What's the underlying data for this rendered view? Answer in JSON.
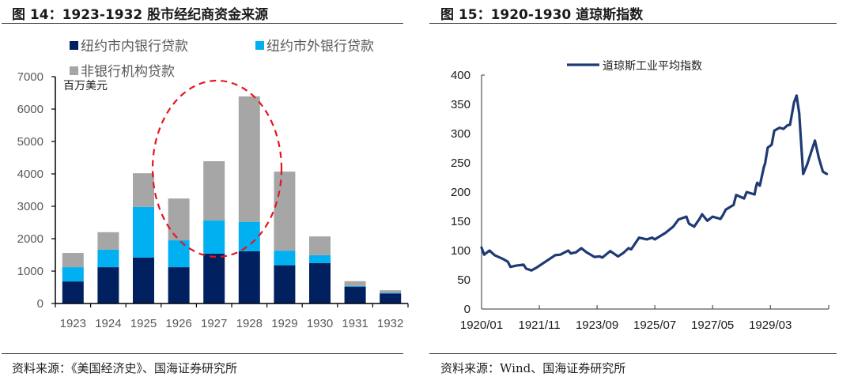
{
  "left": {
    "title": "图 14：1923-1932 股市经纪商资金来源",
    "source": "资料来源：《美国经济史》、国海证券研究所"
  },
  "right": {
    "title": "图 15：1920-1930  道琼斯指数",
    "source": "资料来源：Wind、国海证券研究所"
  },
  "chart_data": [
    {
      "type": "bar",
      "stacked": true,
      "title": "1923-1932 股市经纪商资金来源",
      "unit_label": "百万美元",
      "xlabel": "",
      "ylabel": "百万美元",
      "ylim": [
        0,
        7000
      ],
      "yticks": [
        0,
        1000,
        2000,
        3000,
        4000,
        5000,
        6000,
        7000
      ],
      "categories": [
        "1923",
        "1924",
        "1925",
        "1926",
        "1927",
        "1928",
        "1929",
        "1930",
        "1931",
        "1932"
      ],
      "legend_position": "top",
      "grid": false,
      "series": [
        {
          "name": "纽约市内银行贷款",
          "color": "#002060",
          "values": [
            680,
            1120,
            1420,
            1120,
            1540,
            1610,
            1180,
            1250,
            520,
            310
          ]
        },
        {
          "name": "纽约市外银行贷款",
          "color": "#00b0f0",
          "values": [
            440,
            540,
            1560,
            830,
            1020,
            910,
            450,
            240,
            20,
            20
          ]
        },
        {
          "name": "非银行机构贷款",
          "color": "#a6a6a6",
          "values": [
            440,
            540,
            1040,
            1290,
            1830,
            3870,
            2440,
            580,
            150,
            80
          ]
        }
      ],
      "annotations": [
        {
          "type": "dashed-ellipse",
          "color": "#e8141e",
          "covers": [
            "1926",
            "1927",
            "1928"
          ]
        }
      ]
    },
    {
      "type": "line",
      "title": "1920-1930 道琼斯指数",
      "xlabel": "",
      "ylabel": "",
      "ylim": [
        0,
        400
      ],
      "yticks": [
        0,
        50,
        100,
        150,
        200,
        250,
        300,
        350,
        400
      ],
      "xtick_labels": [
        "1920/01",
        "1921/11",
        "1923/09",
        "1925/07",
        "1927/05",
        "1929/03"
      ],
      "legend_position": "top",
      "grid": false,
      "series": [
        {
          "name": "道琼斯工业平均指数",
          "color": "#1f3a73",
          "x_month_index": [
            0,
            1,
            3,
            5,
            6,
            8,
            10,
            11,
            13,
            16,
            17,
            19,
            21,
            24,
            26,
            28,
            30,
            33,
            34,
            36,
            38,
            40,
            43,
            45,
            46,
            49,
            52,
            54,
            56,
            57,
            60,
            63,
            65,
            66,
            70,
            73,
            75,
            78,
            79,
            81,
            83,
            84,
            86,
            88,
            91,
            92,
            93,
            96,
            97,
            100,
            101,
            104,
            105,
            104.5,
            106,
            107.5,
            108,
            109,
            110.5,
            111.5,
            113.5,
            115,
            116.5,
            117.5,
            119,
            120,
            121,
            122.5,
            124,
            125.5,
            127,
            128.5,
            130,
            131.5
          ],
          "values": [
            105,
            93,
            100,
            92,
            90,
            86,
            81,
            72,
            74,
            76,
            69,
            66,
            71,
            80,
            86,
            92,
            93,
            100,
            95,
            97,
            104,
            97,
            89,
            90,
            88,
            99,
            90,
            96,
            104,
            102,
            122,
            119,
            122,
            119,
            130,
            141,
            153,
            158,
            146,
            141,
            154,
            162,
            151,
            158,
            154,
            161,
            170,
            178,
            195,
            189,
            200,
            196,
            216,
            208,
            211,
            242,
            249,
            276,
            281,
            305,
            310,
            308,
            314,
            315,
            353,
            365,
            335,
            231,
            247,
            268,
            288,
            258,
            235,
            231
          ]
        }
      ]
    }
  ]
}
